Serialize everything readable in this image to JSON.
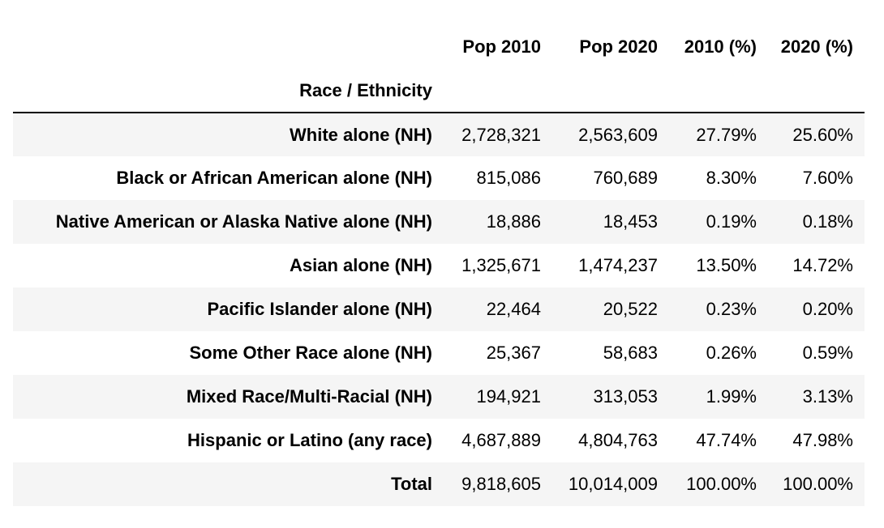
{
  "table": {
    "index_name": "Race / Ethnicity",
    "columns": [
      "Pop 2010",
      "Pop 2020",
      "2010 (%)",
      "2020 (%)"
    ],
    "rows": [
      {
        "label": "White alone (NH)",
        "pop_2010": "2,728,321",
        "pop_2020": "2,563,609",
        "pct_2010": "27.79%",
        "pct_2020": "25.60%"
      },
      {
        "label": "Black or African American alone (NH)",
        "pop_2010": "815,086",
        "pop_2020": "760,689",
        "pct_2010": "8.30%",
        "pct_2020": "7.60%"
      },
      {
        "label": "Native American or Alaska Native alone (NH)",
        "pop_2010": "18,886",
        "pop_2020": "18,453",
        "pct_2010": "0.19%",
        "pct_2020": "0.18%"
      },
      {
        "label": "Asian alone (NH)",
        "pop_2010": "1,325,671",
        "pop_2020": "1,474,237",
        "pct_2010": "13.50%",
        "pct_2020": "14.72%"
      },
      {
        "label": "Pacific Islander alone (NH)",
        "pop_2010": "22,464",
        "pop_2020": "20,522",
        "pct_2010": "0.23%",
        "pct_2020": "0.20%"
      },
      {
        "label": "Some Other Race alone (NH)",
        "pop_2010": "25,367",
        "pop_2020": "58,683",
        "pct_2010": "0.26%",
        "pct_2020": "0.59%"
      },
      {
        "label": "Mixed Race/Multi-Racial (NH)",
        "pop_2010": "194,921",
        "pop_2020": "313,053",
        "pct_2010": "1.99%",
        "pct_2020": "3.13%"
      },
      {
        "label": "Hispanic or Latino (any race)",
        "pop_2010": "4,687,889",
        "pop_2020": "4,804,763",
        "pct_2010": "47.74%",
        "pct_2020": "47.98%"
      },
      {
        "label": "Total",
        "pop_2010": "9,818,605",
        "pop_2020": "10,014,009",
        "pct_2010": "100.00%",
        "pct_2020": "100.00%"
      }
    ]
  },
  "colors": {
    "stripe": "#f5f5f5",
    "rule": "#000000",
    "text": "#000000"
  }
}
